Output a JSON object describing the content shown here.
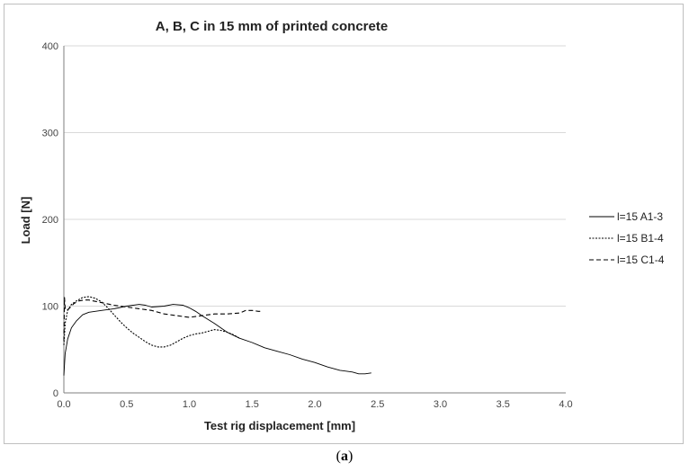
{
  "chart_data": {
    "type": "line",
    "title": "A, B, C in 15 mm of printed concrete",
    "xlabel": "Test rig displacement [mm]",
    "ylabel": "Load [N]",
    "xlim": [
      0,
      4
    ],
    "ylim": [
      0,
      400
    ],
    "xticks": [
      "0.0",
      "0.5",
      "1.0",
      "1.5",
      "2.0",
      "2.5",
      "3.0",
      "3.5",
      "4.0"
    ],
    "yticks": [
      "0",
      "100",
      "200",
      "300",
      "400"
    ],
    "grid": "horizontal",
    "legend_position": "right",
    "color": "#000000",
    "series": [
      {
        "name": "l=15 A1-3",
        "style": "solid",
        "x": [
          0,
          0.01,
          0.03,
          0.06,
          0.1,
          0.15,
          0.2,
          0.3,
          0.4,
          0.5,
          0.6,
          0.65,
          0.7,
          0.8,
          0.87,
          0.95,
          1.0,
          1.05,
          1.1,
          1.2,
          1.3,
          1.4,
          1.5,
          1.6,
          1.7,
          1.8,
          1.9,
          2.0,
          2.1,
          2.2,
          2.3,
          2.35,
          2.4,
          2.45
        ],
        "y": [
          20,
          45,
          62,
          75,
          83,
          90,
          93,
          95,
          97,
          100,
          102,
          101,
          99,
          100,
          102,
          101,
          98,
          94,
          89,
          80,
          70,
          63,
          58,
          52,
          48,
          44,
          39,
          35,
          30,
          26,
          24,
          22,
          22,
          23
        ]
      },
      {
        "name": "l=15 B1-4",
        "style": "dotted",
        "x": [
          0,
          0.01,
          0.03,
          0.06,
          0.1,
          0.15,
          0.2,
          0.25,
          0.3,
          0.35,
          0.4,
          0.45,
          0.5,
          0.55,
          0.6,
          0.65,
          0.7,
          0.75,
          0.8,
          0.85,
          0.9,
          0.95,
          1.0,
          1.05,
          1.1,
          1.15,
          1.2,
          1.25,
          1.3,
          1.35,
          1.4
        ],
        "y": [
          55,
          80,
          95,
          102,
          106,
          110,
          111,
          109,
          105,
          98,
          90,
          82,
          75,
          69,
          64,
          59,
          55,
          53,
          53,
          55,
          59,
          63,
          66,
          68,
          69,
          71,
          73,
          72,
          70,
          67,
          63
        ]
      },
      {
        "name": "l=15 C1-4",
        "style": "dashed",
        "x": [
          0,
          0.005,
          0.01,
          0.02,
          0.04,
          0.08,
          0.12,
          0.16,
          0.2,
          0.3,
          0.4,
          0.5,
          0.6,
          0.7,
          0.8,
          0.9,
          1.0,
          1.1,
          1.2,
          1.3,
          1.4,
          1.45,
          1.5,
          1.55,
          1.58
        ],
        "y": [
          60,
          110,
          98,
          95,
          97,
          103,
          106,
          107,
          107,
          104,
          101,
          99,
          97,
          95,
          91,
          89,
          87,
          89,
          91,
          91,
          92,
          95,
          95,
          94,
          94
        ]
      }
    ]
  },
  "caption": "(a)"
}
